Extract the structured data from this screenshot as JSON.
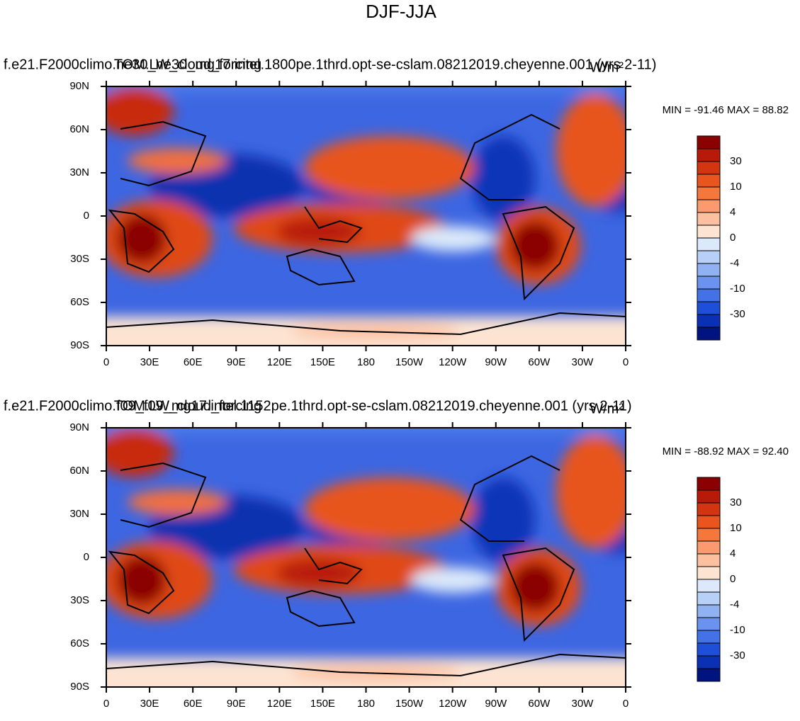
{
  "title": "DJF-JJA",
  "panels": [
    {
      "left_title": "f.e21.F2000climo.ne30_ne30_mg17.intel.1800pe.1thrd.opt-se-cslam.08212019.cheyenne.001 (yrs 2-11)",
      "center_title": "TOM.LW_cloud_forcing",
      "units": "W/m²",
      "min_max": "MIN = -91.46 MAX =  88.82"
    },
    {
      "left_title": "f.e21.F2000climo.f09_f09_mg17.intel.1152pe.1thrd.opt-se-cslam.08212019.cheyenne.001 (yrs 2-11)",
      "center_title": "TOM.LW_cloud_forcing",
      "units": "W/m²",
      "min_max": "MIN = -88.92 MAX =  92.40"
    }
  ],
  "lon_ticks": [
    {
      "value": 0,
      "label": "0"
    },
    {
      "value": 30,
      "label": "30E"
    },
    {
      "value": 60,
      "label": "60E"
    },
    {
      "value": 90,
      "label": "90E"
    },
    {
      "value": 120,
      "label": "120E"
    },
    {
      "value": 150,
      "label": "150E"
    },
    {
      "value": 180,
      "label": "180"
    },
    {
      "value": 210,
      "label": "150W"
    },
    {
      "value": 240,
      "label": "120W"
    },
    {
      "value": 270,
      "label": "90W"
    },
    {
      "value": 300,
      "label": "60W"
    },
    {
      "value": 330,
      "label": "30W"
    },
    {
      "value": 360,
      "label": "0"
    }
  ],
  "lat_ticks": [
    {
      "value": 90,
      "label": "90N"
    },
    {
      "value": 60,
      "label": "60N"
    },
    {
      "value": 30,
      "label": "30N"
    },
    {
      "value": 0,
      "label": "0"
    },
    {
      "value": -30,
      "label": "30S"
    },
    {
      "value": -60,
      "label": "60S"
    },
    {
      "value": -90,
      "label": "90S"
    }
  ],
  "colorbar": {
    "colors": [
      "#8b0000",
      "#b81a0a",
      "#d33510",
      "#e8551f",
      "#f5773c",
      "#fa9a6e",
      "#fcc0a0",
      "#fde4d2",
      "#dbe9fa",
      "#b7d0f7",
      "#90b2f3",
      "#6a92ee",
      "#4372e6",
      "#1f4fd8",
      "#0a30b4",
      "#00137f"
    ],
    "ticks": [
      30,
      10,
      4,
      0,
      -4,
      -10,
      -30
    ]
  }
}
